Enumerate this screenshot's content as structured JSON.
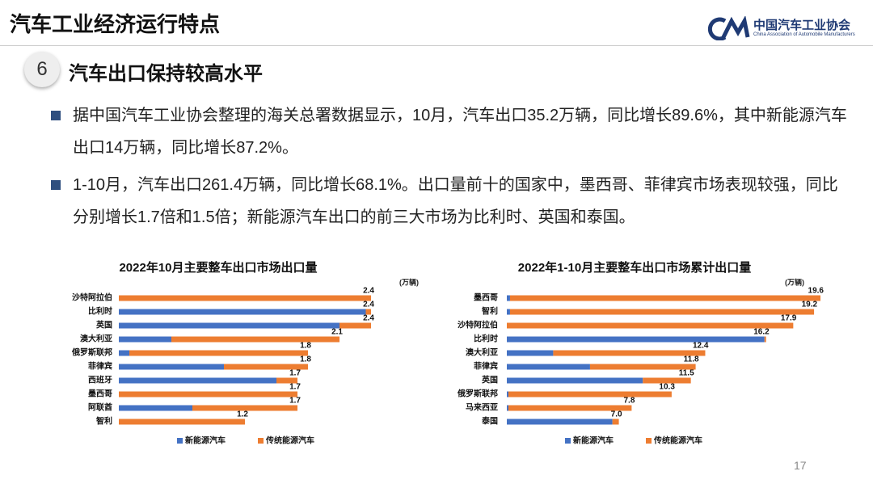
{
  "header": {
    "title": "汽车工业经济运行特点",
    "logo_cn": "中国汽车工业协会",
    "logo_en": "China Association of Automobile Manufacturers"
  },
  "section": {
    "number": "6",
    "title": "汽车出口保持较高水平"
  },
  "bullets": [
    "据中国汽车工业协会整理的海关总署数据显示，10月，汽车出口35.2万辆，同比增长89.6%，其中新能源汽车出口14万辆，同比增长87.2%。",
    "1-10月，汽车出口261.4万辆，同比增长68.1%。出口量前十的国家中，墨西哥、菲律宾市场表现较强，同比分别增长1.7倍和1.5倍；新能源汽车出口的前三大市场为比利时、英国和泰国。"
  ],
  "page_number": "17",
  "chart_data": [
    {
      "type": "stacked-barh",
      "title": "2022年10月主要整车出口市场出口量",
      "unit": "(万辆)",
      "categories": [
        "沙特阿拉伯",
        "比利时",
        "英国",
        "澳大利亚",
        "俄罗斯联邦",
        "菲律宾",
        "西班牙",
        "墨西哥",
        "阿联酋",
        "智利"
      ],
      "series": [
        {
          "name": "新能源汽车",
          "color": "#4472c4",
          "values": [
            0.0,
            2.35,
            2.1,
            0.5,
            0.1,
            1.0,
            1.5,
            0.0,
            0.7,
            0.0
          ]
        },
        {
          "name": "传统能源汽车",
          "color": "#ed7d31",
          "values": [
            2.4,
            0.05,
            0.3,
            1.6,
            1.7,
            0.8,
            0.2,
            1.7,
            1.0,
            1.2
          ]
        }
      ],
      "total_labels": [
        "2.4",
        "2.4",
        "2.4",
        "2.1",
        "1.8",
        "1.8",
        "1.7",
        "1.7",
        "1.7",
        "1.2"
      ]
    },
    {
      "type": "stacked-barh",
      "title": "2022年1-10月主要整车出口市场累计出口量",
      "unit": "(万辆)",
      "categories": [
        "墨西哥",
        "智利",
        "沙特阿拉伯",
        "比利时",
        "澳大利亚",
        "菲律宾",
        "英国",
        "俄罗斯联邦",
        "马来西亚",
        "泰国"
      ],
      "series": [
        {
          "name": "新能源汽车",
          "color": "#4472c4",
          "values": [
            0.2,
            0.2,
            0.0,
            16.1,
            2.9,
            5.2,
            8.5,
            0.1,
            0.1,
            6.6
          ]
        },
        {
          "name": "传统能源汽车",
          "color": "#ed7d31",
          "values": [
            19.4,
            19.0,
            17.9,
            0.1,
            9.5,
            6.6,
            3.0,
            10.2,
            7.7,
            0.4
          ]
        }
      ],
      "total_labels": [
        "19.6",
        "19.2",
        "17.9",
        "16.2",
        "12.4",
        "11.8",
        "11.5",
        "10.3",
        "7.8",
        "7.0"
      ]
    }
  ]
}
